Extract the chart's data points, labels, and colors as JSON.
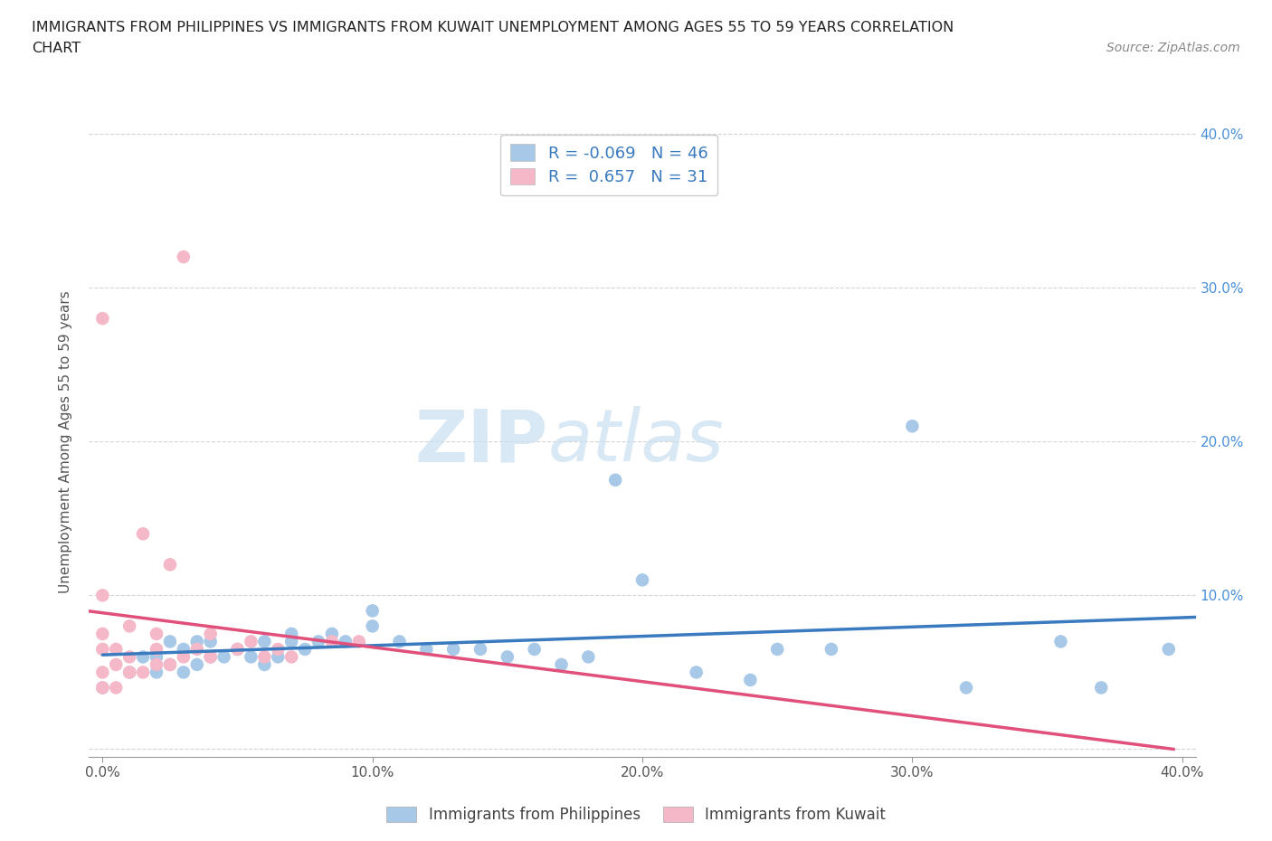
{
  "title_line1": "IMMIGRANTS FROM PHILIPPINES VS IMMIGRANTS FROM KUWAIT UNEMPLOYMENT AMONG AGES 55 TO 59 YEARS CORRELATION",
  "title_line2": "CHART",
  "source": "Source: ZipAtlas.com",
  "ylabel": "Unemployment Among Ages 55 to 59 years",
  "xlim": [
    -0.005,
    0.405
  ],
  "ylim": [
    -0.005,
    0.405
  ],
  "xticks": [
    0.0,
    0.1,
    0.2,
    0.3,
    0.4
  ],
  "yticks": [
    0.0,
    0.1,
    0.2,
    0.3,
    0.4
  ],
  "xtick_labels": [
    "0.0%",
    "10.0%",
    "20.0%",
    "30.0%",
    "40.0%"
  ],
  "right_ytick_labels": [
    "",
    "10.0%",
    "20.0%",
    "30.0%",
    "40.0%"
  ],
  "philippines_color": "#a8c8e8",
  "kuwait_color": "#f4b8c8",
  "philippines_line_color": "#3a7abf",
  "kuwait_line_color": "#e0507a",
  "philippines_R": -0.069,
  "philippines_N": 46,
  "kuwait_R": 0.657,
  "kuwait_N": 31,
  "legend_label_philippines": "Immigrants from Philippines",
  "legend_label_kuwait": "Immigrants from Kuwait",
  "watermark_zip": "ZIP",
  "watermark_atlas": "atlas",
  "background_color": "#ffffff",
  "grid_color": "#d0d0d0",
  "philippines_x": [
    0.0,
    0.01,
    0.015,
    0.02,
    0.02,
    0.025,
    0.025,
    0.03,
    0.03,
    0.035,
    0.035,
    0.04,
    0.04,
    0.045,
    0.05,
    0.055,
    0.06,
    0.06,
    0.065,
    0.07,
    0.07,
    0.075,
    0.08,
    0.085,
    0.09,
    0.1,
    0.1,
    0.11,
    0.12,
    0.13,
    0.14,
    0.15,
    0.16,
    0.17,
    0.18,
    0.19,
    0.2,
    0.22,
    0.24,
    0.25,
    0.27,
    0.3,
    0.32,
    0.355,
    0.37,
    0.395
  ],
  "philippines_y": [
    0.04,
    0.05,
    0.06,
    0.05,
    0.06,
    0.055,
    0.07,
    0.05,
    0.065,
    0.055,
    0.07,
    0.06,
    0.07,
    0.06,
    0.065,
    0.06,
    0.055,
    0.07,
    0.06,
    0.07,
    0.075,
    0.065,
    0.07,
    0.075,
    0.07,
    0.09,
    0.08,
    0.07,
    0.065,
    0.065,
    0.065,
    0.06,
    0.065,
    0.055,
    0.06,
    0.175,
    0.11,
    0.05,
    0.045,
    0.065,
    0.065,
    0.21,
    0.04,
    0.07,
    0.04,
    0.065
  ],
  "kuwait_x": [
    0.0,
    0.0,
    0.0,
    0.0,
    0.0,
    0.0,
    0.005,
    0.005,
    0.005,
    0.01,
    0.01,
    0.01,
    0.015,
    0.015,
    0.02,
    0.02,
    0.02,
    0.025,
    0.025,
    0.03,
    0.03,
    0.035,
    0.04,
    0.04,
    0.05,
    0.055,
    0.06,
    0.065,
    0.07,
    0.085,
    0.095
  ],
  "kuwait_y": [
    0.04,
    0.05,
    0.065,
    0.075,
    0.1,
    0.28,
    0.04,
    0.055,
    0.065,
    0.05,
    0.06,
    0.08,
    0.05,
    0.14,
    0.055,
    0.065,
    0.075,
    0.055,
    0.12,
    0.06,
    0.32,
    0.065,
    0.06,
    0.075,
    0.065,
    0.07,
    0.06,
    0.065,
    0.06,
    0.07,
    0.07
  ]
}
